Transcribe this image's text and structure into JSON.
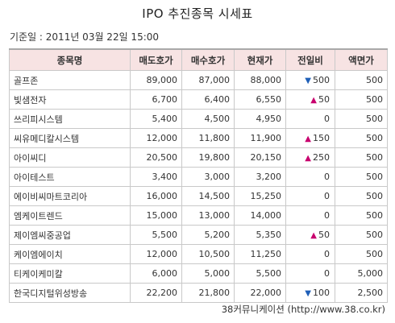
{
  "header": {
    "title": "IPO 추진종목 시세표",
    "base_time": "기준일 : 2011년 03월 22일 15:00"
  },
  "table": {
    "columns": [
      "종목명",
      "매도호가",
      "매수호가",
      "현재가",
      "전일비",
      "액면가"
    ],
    "rows": [
      {
        "name": "골프존",
        "ask": "89,000",
        "bid": "87,000",
        "price": "88,000",
        "dir": "down",
        "arrow": "▼",
        "change": "500",
        "par": "500"
      },
      {
        "name": "빛샘전자",
        "ask": "6,700",
        "bid": "6,400",
        "price": "6,550",
        "dir": "up",
        "arrow": "▲",
        "change": "50",
        "par": "500"
      },
      {
        "name": "쓰리피시스템",
        "ask": "5,400",
        "bid": "4,500",
        "price": "4,950",
        "dir": "flat",
        "arrow": "",
        "change": "0",
        "par": "500"
      },
      {
        "name": "씨유메디칼시스템",
        "ask": "12,000",
        "bid": "11,800",
        "price": "11,900",
        "dir": "up",
        "arrow": "▲",
        "change": "150",
        "par": "500"
      },
      {
        "name": "아이씨디",
        "ask": "20,500",
        "bid": "19,800",
        "price": "20,150",
        "dir": "up",
        "arrow": "▲",
        "change": "250",
        "par": "500"
      },
      {
        "name": "아이테스트",
        "ask": "3,400",
        "bid": "3,000",
        "price": "3,200",
        "dir": "flat",
        "arrow": "",
        "change": "0",
        "par": "500"
      },
      {
        "name": "에이비씨마트코리아",
        "ask": "16,000",
        "bid": "14,500",
        "price": "15,250",
        "dir": "flat",
        "arrow": "",
        "change": "0",
        "par": "500"
      },
      {
        "name": "엠케이트렌드",
        "ask": "15,000",
        "bid": "13,000",
        "price": "14,000",
        "dir": "flat",
        "arrow": "",
        "change": "0",
        "par": "500"
      },
      {
        "name": "제이엠씨중공업",
        "ask": "5,500",
        "bid": "5,200",
        "price": "5,350",
        "dir": "up",
        "arrow": "▲",
        "change": "50",
        "par": "500"
      },
      {
        "name": "케이엠에이치",
        "ask": "12,000",
        "bid": "10,500",
        "price": "11,250",
        "dir": "flat",
        "arrow": "",
        "change": "0",
        "par": "500"
      },
      {
        "name": "티케이케미칼",
        "ask": "6,000",
        "bid": "5,000",
        "price": "5,500",
        "dir": "flat",
        "arrow": "",
        "change": "0",
        "par": "5,000"
      },
      {
        "name": "한국디지털위성방송",
        "ask": "22,200",
        "bid": "21,800",
        "price": "22,000",
        "dir": "down",
        "arrow": "▼",
        "change": "100",
        "par": "2,500"
      }
    ]
  },
  "footer": {
    "source": "38커뮤니케이션 (http://www.38.co.kr)"
  },
  "colors": {
    "header_bg": "#f7e3e3",
    "up": "#c8006e",
    "down": "#1f5fb8",
    "border": "#c9c9c9"
  }
}
